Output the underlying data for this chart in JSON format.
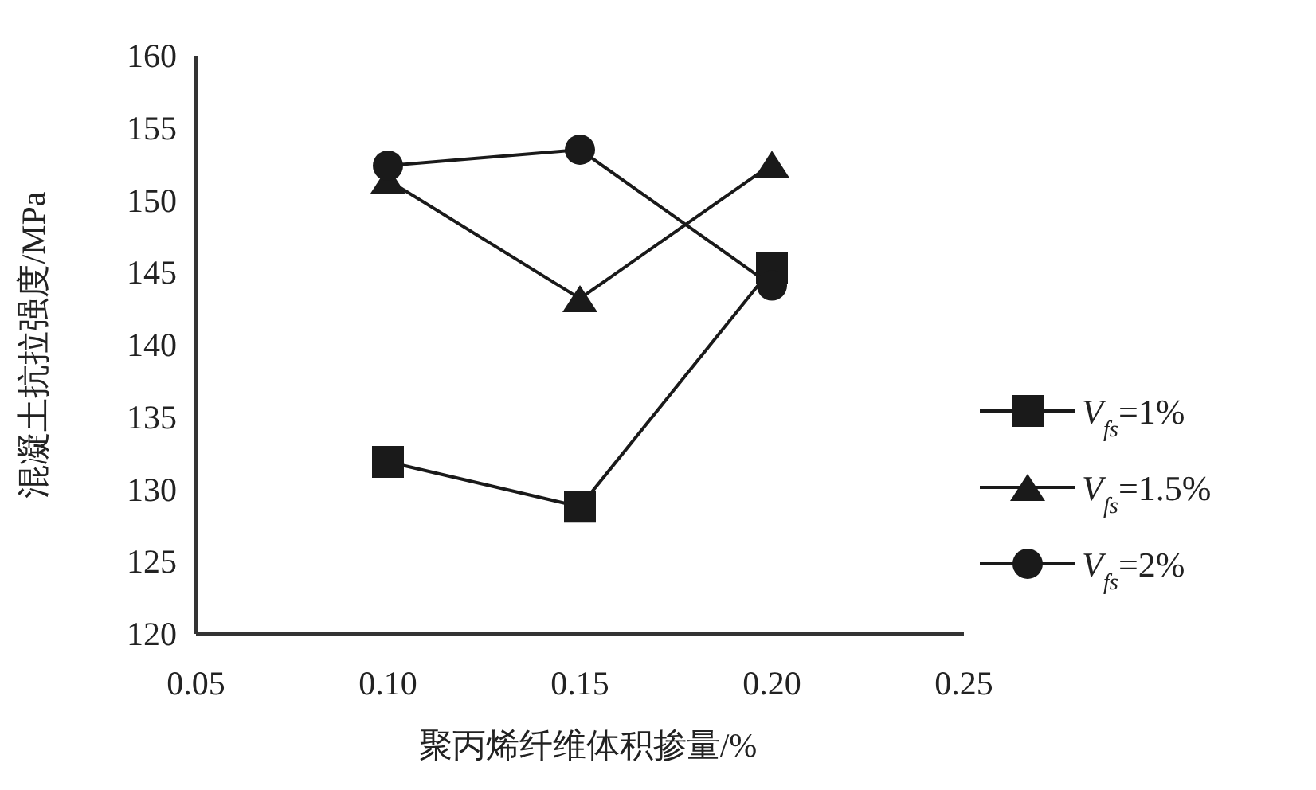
{
  "chart_data": {
    "type": "line",
    "xlabel": "聚丙烯纤维体积掺量/%",
    "ylabel": "混凝土抗拉强度/MPa",
    "x": [
      0.1,
      0.15,
      0.2
    ],
    "xlim": [
      0.05,
      0.25
    ],
    "xticks": [
      {
        "value": 0.05,
        "label": "0.05"
      },
      {
        "value": 0.1,
        "label": "0.10"
      },
      {
        "value": 0.15,
        "label": "0.15"
      },
      {
        "value": 0.2,
        "label": "0.20"
      },
      {
        "value": 0.25,
        "label": "0.25"
      }
    ],
    "ylim": [
      120,
      160
    ],
    "yticks": [
      120,
      125,
      130,
      135,
      140,
      145,
      150,
      155,
      160
    ],
    "grid": false,
    "legend": "right",
    "series": [
      {
        "name": "*V*$_{fs}$=1%",
        "color": "#1a1a1a",
        "marker": "square",
        "values": [
          131.9,
          128.8,
          145.3
        ]
      },
      {
        "name": "*V*$_{fs}$=1.5%",
        "color": "#1a1a1a",
        "marker": "triangle",
        "values": [
          151.4,
          143.2,
          152.5
        ]
      },
      {
        "name": "*V*$_{fs}$=2%",
        "color": "#1a1a1a",
        "marker": "circle",
        "values": [
          152.4,
          153.5,
          144.1
        ]
      }
    ]
  }
}
